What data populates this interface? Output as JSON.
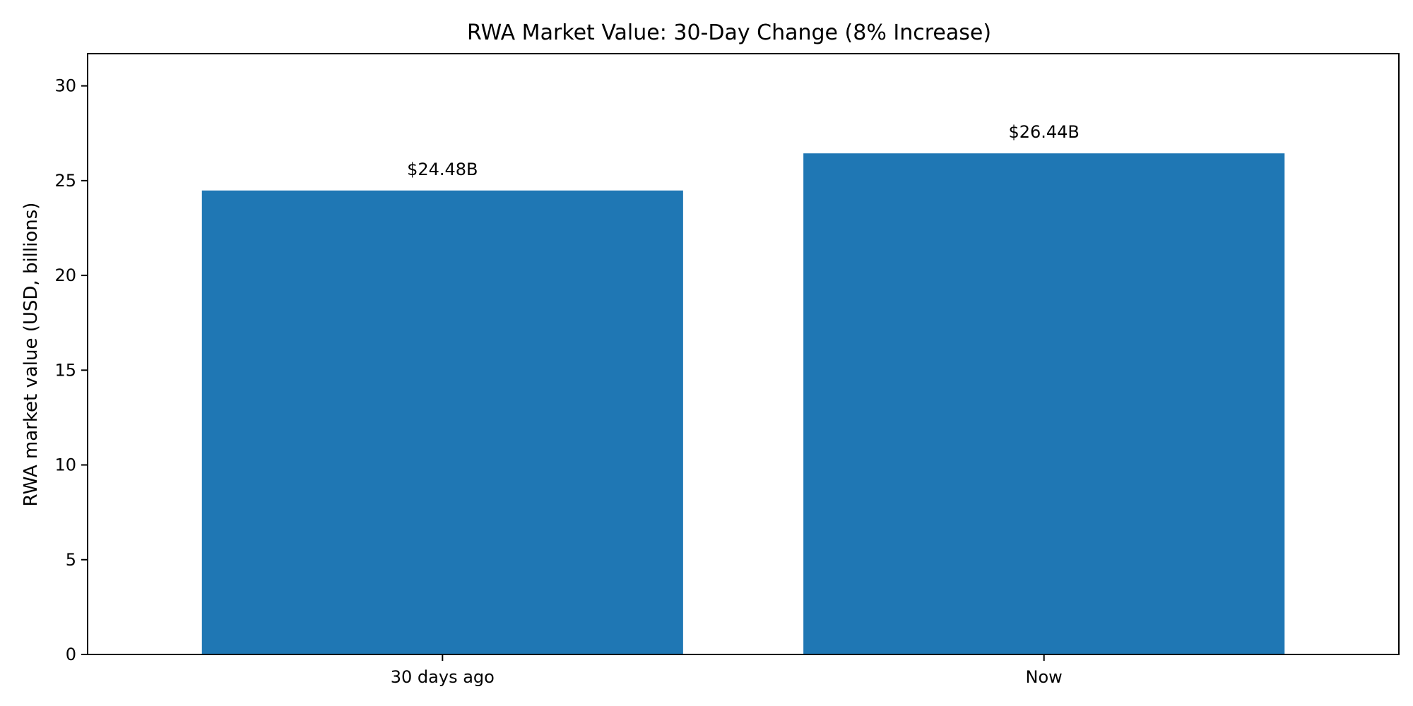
{
  "chart_data": {
    "type": "bar",
    "title": "RWA Market Value: 30-Day Change (8% Increase)",
    "xlabel": "",
    "ylabel": "RWA market value (USD, billions)",
    "categories": [
      "30 days ago",
      "Now"
    ],
    "values": [
      24.48,
      26.44
    ],
    "data_labels": [
      "$24.48B",
      "$26.44B"
    ],
    "ylim": [
      0,
      31.7
    ],
    "yticks": [
      0,
      5,
      10,
      15,
      20,
      25,
      30
    ],
    "grid": false,
    "legend": "none",
    "colors": {
      "bar": "#1f77b4",
      "axis": "#000000"
    }
  }
}
